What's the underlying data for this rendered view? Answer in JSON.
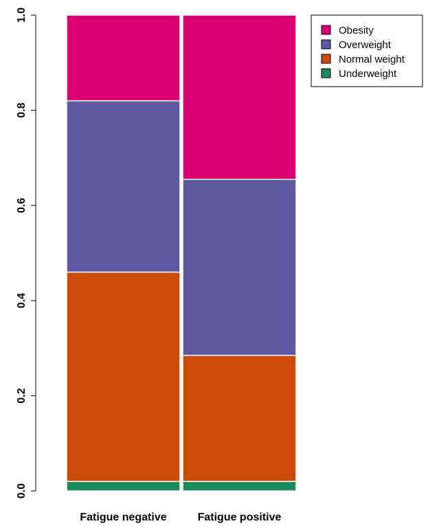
{
  "chart_data": {
    "type": "bar",
    "stacked": true,
    "categories": [
      "Fatigue negative",
      "Fatigue positive"
    ],
    "series": [
      {
        "name": "Underweight",
        "color": "#1b8a5a",
        "values": [
          0.02,
          0.02
        ]
      },
      {
        "name": "Normal weight",
        "color": "#cc4a0a",
        "values": [
          0.44,
          0.265
        ]
      },
      {
        "name": "Overweight",
        "color": "#5e58a2",
        "values": [
          0.36,
          0.37
        ]
      },
      {
        "name": "Obesity",
        "color": "#dc0073",
        "values": [
          0.18,
          0.345
        ]
      }
    ],
    "legend_order": [
      "Obesity",
      "Overweight",
      "Normal weight",
      "Underweight"
    ],
    "legend_position": "top-right",
    "ylim": [
      0,
      1.0
    ],
    "yticks": [
      "0.0",
      "0.2",
      "0.4",
      "0.6",
      "0.8",
      "1.0"
    ],
    "grid": false
  }
}
